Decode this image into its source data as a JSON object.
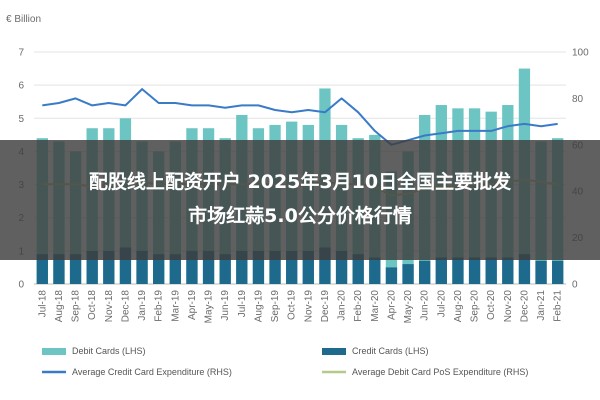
{
  "chart_data": {
    "type": "bar",
    "unit_label": "€ Billion",
    "categories": [
      "Jul-18",
      "Aug-18",
      "Sep-18",
      "Oct-18",
      "Nov-18",
      "Dec-18",
      "Jan-19",
      "Feb-19",
      "Mar-19",
      "Apr-19",
      "May-19",
      "Jun-19",
      "Jul-19",
      "Aug-19",
      "Sep-19",
      "Oct-19",
      "Nov-19",
      "Dec-19",
      "Jan-20",
      "Feb-20",
      "Mar-20",
      "Apr-20",
      "May-20",
      "Jun-20",
      "Jul-20",
      "Aug-20",
      "Sep-20",
      "Oct-20",
      "Nov-20",
      "Dec-20",
      "Jan-21",
      "Feb-21"
    ],
    "left_axis": {
      "ylim": [
        0,
        7
      ],
      "ticks": [
        0,
        1,
        2,
        3,
        4,
        5,
        6,
        7
      ]
    },
    "right_axis": {
      "ylim": [
        0,
        100
      ],
      "ticks": [
        0,
        20,
        40,
        60,
        80,
        100
      ]
    },
    "series": [
      {
        "name": "Debit Cards (LHS)",
        "kind": "bar",
        "axis": "left",
        "color": "#6cc5c2",
        "values": [
          4.4,
          4.3,
          4.0,
          4.7,
          4.7,
          5.0,
          4.3,
          4.0,
          4.3,
          4.7,
          4.7,
          4.4,
          5.1,
          4.7,
          4.8,
          4.9,
          4.8,
          5.9,
          4.8,
          4.4,
          4.5,
          3.4,
          4.0,
          5.1,
          5.4,
          5.3,
          5.3,
          5.2,
          5.4,
          6.5,
          4.3,
          4.4
        ]
      },
      {
        "name": "Credit Cards (LHS)",
        "kind": "bar",
        "axis": "left",
        "color": "#1d6a8c",
        "values": [
          0.9,
          0.9,
          0.9,
          1.0,
          1.0,
          1.1,
          1.0,
          0.9,
          0.9,
          1.0,
          1.0,
          0.9,
          1.0,
          1.0,
          1.0,
          1.0,
          1.0,
          1.1,
          1.0,
          0.9,
          0.8,
          0.5,
          0.6,
          0.7,
          0.8,
          0.8,
          0.8,
          0.8,
          0.8,
          0.9,
          0.7,
          0.7
        ]
      },
      {
        "name": "Average Credit Card Expenditure (RHS)",
        "kind": "line",
        "axis": "right",
        "color": "#3a7bc8",
        "values": [
          77,
          78,
          80,
          77,
          78,
          77,
          84,
          78,
          78,
          77,
          77,
          76,
          77,
          77,
          75,
          74,
          75,
          74,
          80,
          74,
          66,
          60,
          62,
          64,
          65,
          66,
          66,
          66,
          68,
          69,
          68,
          69
        ]
      },
      {
        "name": "Average Debit Card PoS Expenditure (RHS)",
        "kind": "line",
        "axis": "right",
        "color": "#b4c98a",
        "values": [
          43,
          43,
          43,
          42,
          43,
          44,
          44,
          43,
          43,
          43,
          43,
          43,
          43,
          43,
          43,
          42,
          43,
          44,
          43,
          43,
          42,
          38,
          39,
          41,
          42,
          42,
          43,
          43,
          44,
          45,
          44,
          43
        ]
      }
    ],
    "legend_position": "bottom",
    "grid": true
  },
  "banner": {
    "line1": "配股线上配资开户 2025年3月10日全国主要批发",
    "line2": "市场红蒜5.0公分价格行情",
    "color": "#3d3d3d"
  }
}
